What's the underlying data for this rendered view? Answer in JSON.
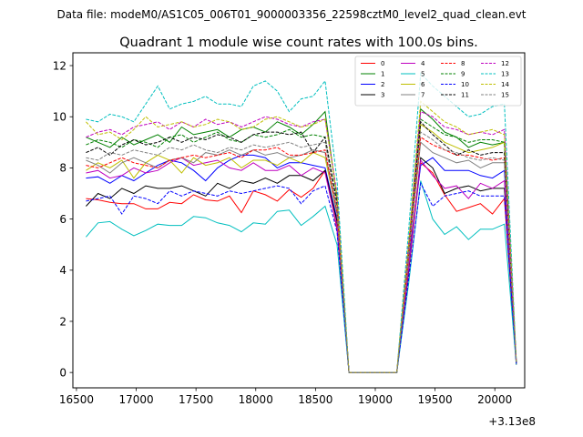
{
  "suptitle": "Data file: modeM0/AS1C05_006T01_9000003356_22598cztM0_level2_quad_clean.evt",
  "chart_data": {
    "type": "line",
    "title": "Quadrant 1 module wise count rates with 100.0s bins.",
    "xlabel": "",
    "ylabel": "",
    "x_offset_label": "+3.13e8",
    "xlim": [
      16470,
      20250
    ],
    "ylim": [
      -0.6,
      12.5
    ],
    "xticks": [
      16500,
      17000,
      17500,
      18000,
      18500,
      19000,
      19500,
      20000
    ],
    "xtick_labels": [
      "16500",
      "17000",
      "17500",
      "18000",
      "18500",
      "19000",
      "19500",
      "20000"
    ],
    "yticks": [
      0,
      2,
      4,
      6,
      8,
      10,
      12
    ],
    "ytick_labels": [
      "0",
      "2",
      "4",
      "6",
      "8",
      "10",
      "12"
    ],
    "legend_position": "top-right",
    "x": [
      16580,
      16680,
      16780,
      16880,
      16980,
      17080,
      17180,
      17280,
      17380,
      17480,
      17580,
      17680,
      17780,
      17880,
      17980,
      18080,
      18180,
      18280,
      18380,
      18480,
      18580,
      18680,
      18780,
      18880,
      18980,
      19080,
      19180,
      19280,
      19380,
      19480,
      19580,
      19680,
      19780,
      19880,
      19980,
      20080,
      20180
    ],
    "series": [
      {
        "name": "0",
        "color": "#ff0000",
        "dash": "solid",
        "values": [
          6.8,
          6.75,
          6.65,
          6.6,
          6.6,
          6.4,
          6.4,
          6.65,
          6.6,
          6.95,
          6.75,
          6.7,
          6.9,
          6.25,
          7.1,
          6.95,
          6.7,
          7.15,
          6.85,
          7.2,
          7.9,
          5.6,
          0,
          0,
          0,
          0,
          0,
          4.0,
          8.2,
          7.8,
          6.95,
          6.3,
          6.45,
          6.6,
          6.2,
          6.8,
          0.3
        ]
      },
      {
        "name": "1",
        "color": "#008000",
        "dash": "solid",
        "values": [
          9.2,
          9.0,
          8.8,
          9.2,
          8.9,
          9.1,
          9.3,
          9.0,
          9.6,
          9.3,
          9.4,
          9.5,
          9.2,
          9.5,
          9.6,
          9.4,
          9.8,
          9.6,
          9.3,
          9.7,
          10.2,
          6.8,
          0,
          0,
          0,
          0,
          0,
          5.0,
          10.3,
          9.9,
          9.4,
          9.2,
          8.8,
          9.0,
          8.9,
          9.0,
          0.35
        ]
      },
      {
        "name": "2",
        "color": "#0000ff",
        "dash": "solid",
        "values": [
          7.6,
          7.65,
          7.4,
          7.7,
          7.5,
          7.8,
          8.1,
          8.3,
          8.2,
          7.9,
          7.5,
          8.0,
          8.3,
          8.5,
          8.5,
          8.4,
          8.0,
          8.2,
          8.2,
          8.1,
          8.0,
          6.0,
          0,
          0,
          0,
          0,
          0,
          4.4,
          8.1,
          8.4,
          7.9,
          7.9,
          7.9,
          7.7,
          7.6,
          7.9,
          0.35
        ]
      },
      {
        "name": "3",
        "color": "#000000",
        "dash": "solid",
        "values": [
          6.5,
          7.0,
          6.8,
          7.2,
          7.0,
          7.3,
          7.2,
          7.2,
          7.3,
          7.1,
          6.9,
          7.4,
          7.2,
          7.5,
          7.4,
          7.6,
          7.4,
          7.7,
          7.7,
          7.5,
          7.9,
          5.9,
          0,
          0,
          0,
          0,
          0,
          4.0,
          8.4,
          8.0,
          7.0,
          7.2,
          7.3,
          7.1,
          7.2,
          7.2,
          0.35
        ]
      },
      {
        "name": "4",
        "color": "#bf00bf",
        "dash": "solid",
        "values": [
          7.8,
          7.9,
          7.6,
          7.7,
          8.0,
          7.8,
          7.9,
          8.2,
          8.4,
          8.1,
          8.2,
          8.3,
          8.0,
          7.9,
          8.2,
          7.9,
          7.9,
          8.1,
          7.7,
          8.0,
          7.8,
          5.7,
          0,
          0,
          0,
          0,
          0,
          4.1,
          8.3,
          7.7,
          7.2,
          7.3,
          6.8,
          7.4,
          7.2,
          7.5,
          0.35
        ]
      },
      {
        "name": "5",
        "color": "#00bfbf",
        "dash": "solid",
        "values": [
          5.3,
          5.85,
          5.9,
          5.6,
          5.35,
          5.55,
          5.8,
          5.75,
          5.75,
          6.1,
          6.05,
          5.85,
          5.75,
          5.5,
          5.85,
          5.8,
          6.3,
          6.35,
          5.75,
          6.1,
          6.5,
          5.0,
          0,
          0,
          0,
          0,
          0,
          3.5,
          7.5,
          6.0,
          5.4,
          5.7,
          5.2,
          5.6,
          5.6,
          5.8,
          0.3
        ]
      },
      {
        "name": "6",
        "color": "#bfbf00",
        "dash": "solid",
        "values": [
          7.9,
          8.2,
          8.0,
          8.3,
          7.6,
          8.2,
          8.5,
          8.3,
          7.8,
          8.4,
          8.1,
          8.2,
          8.4,
          8.0,
          8.3,
          8.3,
          8.1,
          8.4,
          8.2,
          8.6,
          8.4,
          6.2,
          0,
          0,
          0,
          0,
          0,
          4.5,
          9.7,
          9.4,
          9.0,
          8.8,
          8.6,
          8.7,
          8.8,
          9.0,
          0.4
        ]
      },
      {
        "name": "7",
        "color": "#808080",
        "dash": "solid",
        "values": [
          8.3,
          8.1,
          7.8,
          8.2,
          8.4,
          8.2,
          8.0,
          8.3,
          8.4,
          8.2,
          8.6,
          8.5,
          8.7,
          8.5,
          8.7,
          8.5,
          8.6,
          8.4,
          8.5,
          8.7,
          8.6,
          6.2,
          0,
          0,
          0,
          0,
          0,
          4.6,
          9.0,
          8.6,
          8.4,
          8.2,
          8.3,
          8.0,
          8.2,
          8.2,
          0.4
        ]
      },
      {
        "name": "8",
        "color": "#ff0000",
        "dash": "dashed",
        "values": [
          8.1,
          8.0,
          8.2,
          8.4,
          8.2,
          8.1,
          8.0,
          8.3,
          8.4,
          8.5,
          8.4,
          8.5,
          8.6,
          8.4,
          8.7,
          8.7,
          8.8,
          8.5,
          8.5,
          8.6,
          8.7,
          6.3,
          0,
          0,
          0,
          0,
          0,
          4.6,
          9.2,
          8.9,
          8.7,
          8.5,
          8.5,
          8.4,
          8.3,
          8.4,
          0.4
        ]
      },
      {
        "name": "9",
        "color": "#008000",
        "dash": "dashed",
        "values": [
          8.9,
          9.1,
          9.0,
          8.8,
          9.1,
          9.0,
          8.8,
          9.2,
          9.3,
          9.0,
          9.2,
          9.4,
          9.1,
          9.0,
          9.3,
          9.2,
          9.3,
          9.5,
          9.2,
          9.3,
          9.2,
          6.6,
          0,
          0,
          0,
          0,
          0,
          4.9,
          9.9,
          9.6,
          9.3,
          9.2,
          9.0,
          9.1,
          9.1,
          9.0,
          0.4
        ]
      },
      {
        "name": "10",
        "color": "#0000ff",
        "dash": "dashed",
        "values": [
          6.7,
          6.8,
          6.9,
          6.2,
          6.9,
          6.8,
          6.6,
          7.1,
          6.9,
          7.1,
          7.0,
          6.9,
          7.1,
          7.0,
          7.1,
          7.2,
          7.3,
          7.2,
          6.6,
          7.1,
          7.3,
          5.5,
          0,
          0,
          0,
          0,
          0,
          3.7,
          7.4,
          6.5,
          6.9,
          7.0,
          7.1,
          6.9,
          6.9,
          6.9,
          0.35
        ]
      },
      {
        "name": "11",
        "color": "#000000",
        "dash": "dashed",
        "values": [
          8.6,
          8.8,
          8.5,
          8.9,
          9.1,
          8.9,
          9.0,
          9.2,
          9.0,
          9.2,
          9.1,
          9.3,
          9.2,
          9.0,
          9.3,
          9.4,
          9.4,
          9.3,
          9.4,
          8.6,
          9.2,
          6.6,
          0,
          0,
          0,
          0,
          0,
          4.8,
          9.8,
          9.3,
          8.9,
          8.5,
          8.7,
          8.5,
          8.6,
          8.6,
          0.4
        ]
      },
      {
        "name": "12",
        "color": "#bf00bf",
        "dash": "dashed",
        "values": [
          9.2,
          9.4,
          9.5,
          9.3,
          9.6,
          9.7,
          9.8,
          9.5,
          9.8,
          9.6,
          9.9,
          9.7,
          9.8,
          9.6,
          9.8,
          10.0,
          9.9,
          9.7,
          9.6,
          9.8,
          9.9,
          7.0,
          0,
          0,
          0,
          0,
          0,
          5.1,
          10.2,
          10.0,
          9.6,
          9.5,
          9.3,
          9.4,
          9.3,
          9.5,
          0.4
        ]
      },
      {
        "name": "13",
        "color": "#00bfbf",
        "dash": "dashed",
        "values": [
          9.9,
          9.8,
          10.1,
          10.0,
          9.8,
          10.5,
          11.2,
          10.3,
          10.5,
          10.6,
          10.8,
          10.5,
          10.5,
          10.4,
          11.2,
          11.4,
          11.0,
          10.2,
          10.7,
          10.8,
          11.4,
          7.5,
          0,
          0,
          0,
          0,
          0,
          5.6,
          11.7,
          11.2,
          10.8,
          10.4,
          10.0,
          10.1,
          10.4,
          10.5,
          0.45
        ]
      },
      {
        "name": "14",
        "color": "#bfbf00",
        "dash": "dashed",
        "values": [
          9.8,
          9.3,
          9.4,
          9.1,
          9.5,
          10.0,
          9.6,
          9.7,
          9.8,
          9.6,
          9.7,
          9.9,
          9.8,
          9.5,
          9.6,
          9.9,
          10.0,
          9.8,
          9.6,
          9.7,
          9.9,
          6.9,
          0,
          0,
          0,
          0,
          0,
          5.1,
          10.6,
          10.2,
          9.8,
          9.6,
          9.3,
          9.4,
          9.5,
          9.3,
          0.45
        ]
      },
      {
        "name": "15",
        "color": "#808080",
        "dash": "dashed",
        "values": [
          8.4,
          8.3,
          8.6,
          8.5,
          8.7,
          8.6,
          8.5,
          8.8,
          8.7,
          8.9,
          8.7,
          8.6,
          8.8,
          8.7,
          8.9,
          8.8,
          8.9,
          9.0,
          8.8,
          8.9,
          9.0,
          6.4,
          0,
          0,
          0,
          0,
          0,
          4.7,
          9.4,
          9.1,
          8.7,
          8.6,
          8.4,
          8.3,
          8.4,
          8.3,
          0.4
        ]
      }
    ]
  }
}
